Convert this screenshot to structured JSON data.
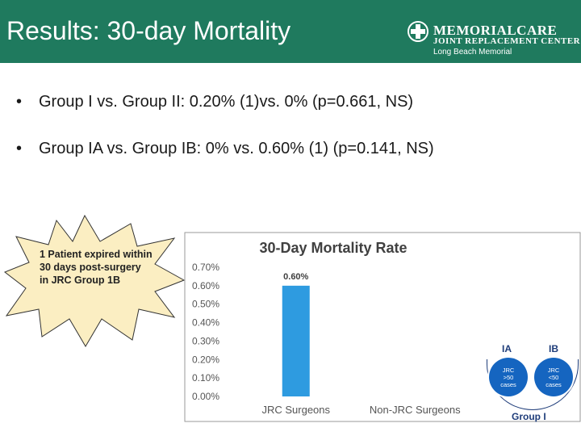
{
  "header": {
    "title": "Results: 30-day Mortality",
    "logo": {
      "line1": "MEMORIALCARE",
      "line2": "JOINT REPLACEMENT CENTER",
      "line3": "Long Beach Memorial"
    }
  },
  "bullets": [
    "Group I vs. Group II: 0.20% (1)vs. 0% (p=0.661, NS)",
    "Group IA vs. Group IB: 0% vs. 0.60% (1) (p=0.141, NS)"
  ],
  "callout": {
    "text": "1 Patient expired within 30 days post-surgery in JRC Group 1B"
  },
  "groups": {
    "ia_label": "IA",
    "ib_label": "IB",
    "ia_circle": "JRC\n>50\ncases",
    "ib_circle": "JRC\n<50\ncases",
    "group_label": "Group I"
  },
  "colors": {
    "header_bg": "#1f7a5e",
    "bar": "#2e9be0",
    "callout_fill": "#fbeec2",
    "arrow": "#f5a623",
    "circle": "#1565c0"
  },
  "chart_data": {
    "type": "bar",
    "title": "30-Day Mortality Rate",
    "categories": [
      "JRC Surgeons",
      "Non-JRC Surgeons"
    ],
    "values": [
      0.6,
      0.0
    ],
    "data_labels": [
      "0.60%",
      ""
    ],
    "yticks": [
      "0.00%",
      "0.10%",
      "0.20%",
      "0.30%",
      "0.40%",
      "0.50%",
      "0.60%",
      "0.70%"
    ],
    "ylim": [
      0,
      0.7
    ],
    "xlabel": "",
    "ylabel": "",
    "grid": false
  }
}
